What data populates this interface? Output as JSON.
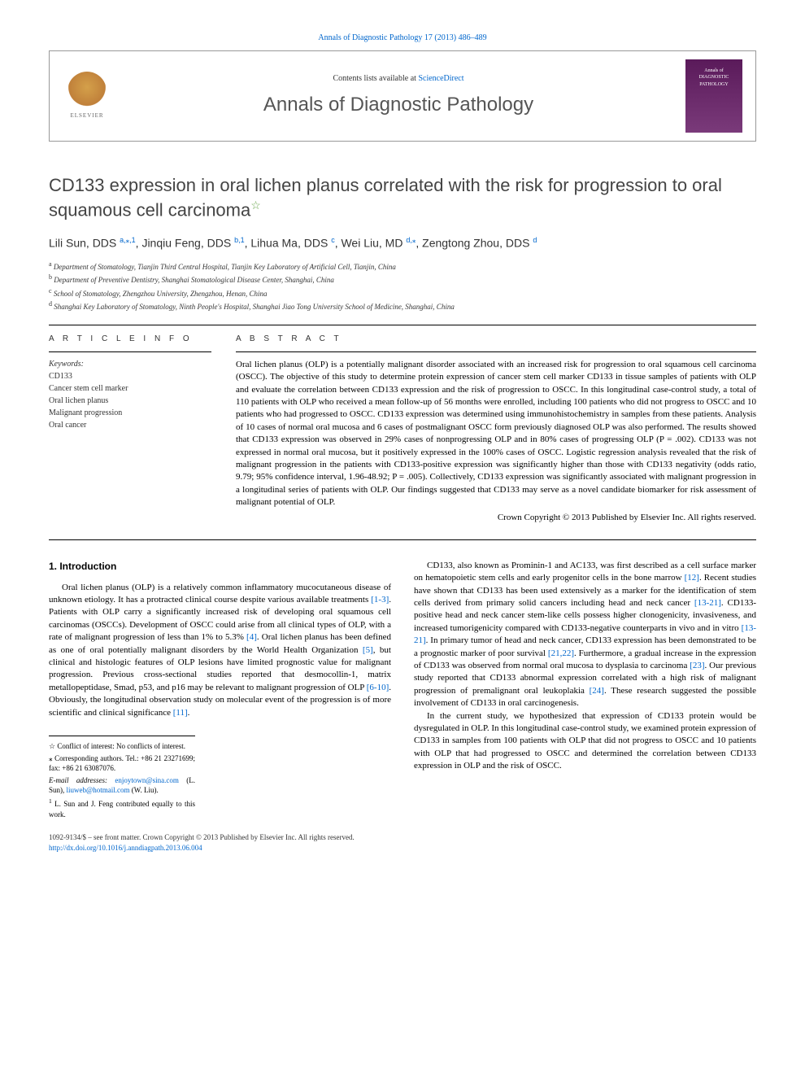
{
  "journal": {
    "citation_line": "Annals of Diagnostic Pathology 17 (2013) 486–489",
    "contents_prefix": "Contents lists available at ",
    "contents_link": "ScienceDirect",
    "name": "Annals of Diagnostic Pathology",
    "cover_label_1": "Annals of",
    "cover_label_2": "DIAGNOSTIC",
    "cover_label_3": "PATHOLOGY",
    "elsevier": "ELSEVIER"
  },
  "article": {
    "title": "CD133 expression in oral lichen planus correlated with the risk for progression to oral squamous cell carcinoma",
    "star_note": "☆"
  },
  "authors": {
    "a1_name": "Lili Sun, DDS ",
    "a1_sup": "a,⁎,1",
    "a2_name": ", Jinqiu Feng, DDS ",
    "a2_sup": "b,1",
    "a3_name": ", Lihua Ma, DDS ",
    "a3_sup": "c",
    "a4_name": ", Wei Liu, MD ",
    "a4_sup": "d,⁎",
    "a5_name": ", Zengtong Zhou, DDS ",
    "a5_sup": "d"
  },
  "affiliations": {
    "a": "Department of Stomatology, Tianjin Third Central Hospital, Tianjin Key Laboratory of Artificial Cell, Tianjin, China",
    "b": "Department of Preventive Dentistry, Shanghai Stomatological Disease Center, Shanghai, China",
    "c": "School of Stomatology, Zhengzhou University, Zhengzhou, Henan, China",
    "d": "Shanghai Key Laboratory of Stomatology, Ninth People's Hospital, Shanghai Jiao Tong University School of Medicine, Shanghai, China"
  },
  "article_info": {
    "label": "A R T I C L E   I N F O",
    "keywords_label": "Keywords:",
    "keywords": [
      "CD133",
      "Cancer stem cell marker",
      "Oral lichen planus",
      "Malignant progression",
      "Oral cancer"
    ]
  },
  "abstract": {
    "label": "A B S T R A C T",
    "text": "Oral lichen planus (OLP) is a potentially malignant disorder associated with an increased risk for progression to oral squamous cell carcinoma (OSCC). The objective of this study to determine protein expression of cancer stem cell marker CD133 in tissue samples of patients with OLP and evaluate the correlation between CD133 expression and the risk of progression to OSCC. In this longitudinal case-control study, a total of 110 patients with OLP who received a mean follow-up of 56 months were enrolled, including 100 patients who did not progress to OSCC and 10 patients who had progressed to OSCC. CD133 expression was determined using immunohistochemistry in samples from these patients. Analysis of 10 cases of normal oral mucosa and 6 cases of postmalignant OSCC form previously diagnosed OLP was also performed. The results showed that CD133 expression was observed in 29% cases of nonprogressing OLP and in 80% cases of progressing OLP (P = .002). CD133 was not expressed in normal oral mucosa, but it positively expressed in the 100% cases of OSCC. Logistic regression analysis revealed that the risk of malignant progression in the patients with CD133-positive expression was significantly higher than those with CD133 negativity (odds ratio, 9.79; 95% confidence interval, 1.96-48.92; P = .005). Collectively, CD133 expression was significantly associated with malignant progression in a longitudinal series of patients with OLP. Our findings suggested that CD133 may serve as a novel candidate biomarker for risk assessment of malignant potential of OLP.",
    "copyright": "Crown Copyright © 2013 Published by Elsevier Inc. All rights reserved."
  },
  "body": {
    "intro_heading": "1. Introduction",
    "p1a": "Oral lichen planus (OLP) is a relatively common inflammatory mucocutaneous disease of unknown etiology. It has a protracted clinical course despite various available treatments ",
    "c1": "[1-3]",
    "p1b": ". Patients with OLP carry a significantly increased risk of developing oral squamous cell carcinomas (OSCCs). Development of OSCC could arise from all clinical types of OLP, with a rate of malignant progression of less than 1% to 5.3% ",
    "c2": "[4]",
    "p1c": ". Oral lichen planus has been defined as one of oral potentially malignant disorders by the World Health Organization ",
    "c3": "[5]",
    "p1d": ", but clinical and histologic features of OLP lesions have limited prognostic value for malignant progression. Previous cross-sectional studies reported that desmocollin-1, matrix metallopeptidase, Smad, p53, and p16 may be relevant to malignant progression of OLP ",
    "c4": "[6-10]",
    "p1e": ". Obviously, the longitudinal observation study on molecular event of the progression is of more scientific and clinical significance ",
    "c5": "[11]",
    "p1f": ".",
    "p2a": "CD133, also known as Prominin-1 and AC133, was first described as a cell surface marker on hematopoietic stem cells and early progenitor cells in the bone marrow ",
    "c6": "[12]",
    "p2b": ". Recent studies have shown that CD133 has been used extensively as a marker for the identification of stem cells derived from primary solid cancers including head and neck cancer ",
    "c7": "[13-21]",
    "p2c": ". CD133-positive head and neck cancer stem-like cells possess higher clonogenicity, invasiveness, and increased tumorigenicity compared with CD133-negative counterparts in vivo and in vitro ",
    "c8": "[13-21]",
    "p2d": ". In primary tumor of head and neck cancer, CD133 expression has been demonstrated to be a prognostic marker of poor survival ",
    "c9": "[21,22]",
    "p2e": ". Furthermore, a gradual increase in the expression of CD133 was observed from normal oral mucosa to dysplasia to carcinoma ",
    "c10": "[23]",
    "p2f": ". Our previous study reported that CD133 abnormal expression correlated with a high risk of malignant progression of premalignant oral leukoplakia ",
    "c11": "[24]",
    "p2g": ". These research suggested the possible involvement of CD133 in oral carcinogenesis.",
    "p3": "In the current study, we hypothesized that expression of CD133 protein would be dysregulated in OLP. In this longitudinal case-control study, we examined protein expression of CD133 in samples from 100 patients with OLP that did not progress to OSCC and 10 patients with OLP that had progressed to OSCC and determined the correlation between CD133 expression in OLP and the risk of OSCC."
  },
  "footnotes": {
    "conflict": "Conflict of interest: No conflicts of interest.",
    "corresponding": "Corresponding authors. Tel.: +86 21 23271699; fax: +86 21 63087076.",
    "email_label": "E-mail addresses: ",
    "email1": "enjoytown@sina.com",
    "email1_who": " (L. Sun), ",
    "email2": "liuweb@hotmail.com",
    "email2_who": " (W. Liu).",
    "equal": "L. Sun and J. Feng contributed equally to this work."
  },
  "footer": {
    "line1": "1092-9134/$ – see front matter. Crown Copyright © 2013 Published by Elsevier Inc. All rights reserved.",
    "doi": "http://dx.doi.org/10.1016/j.anndiagpath.2013.06.004"
  },
  "colors": {
    "link": "#0066cc",
    "text": "#000000",
    "heading": "#444444",
    "cover_bg": "#5a1a5a",
    "star": "#6aa84f"
  }
}
